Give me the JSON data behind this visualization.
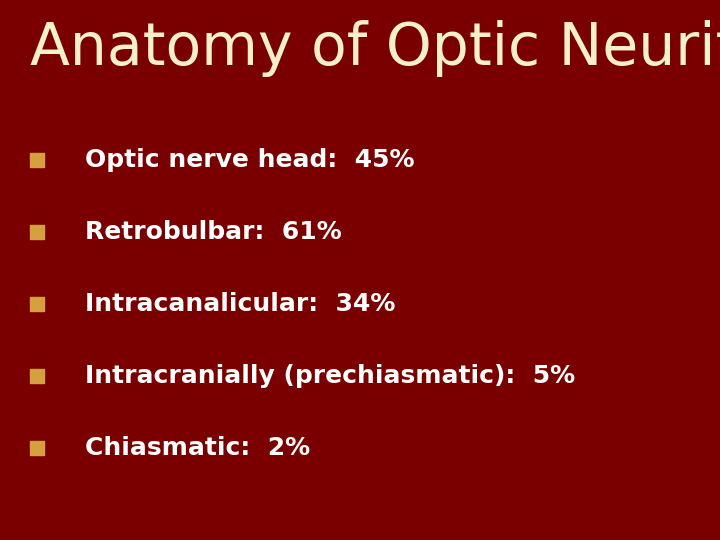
{
  "title": "Anatomy of Optic Neuritis",
  "title_color": "#F5F0C8",
  "title_fontsize": 42,
  "title_fontweight": "normal",
  "background_color": "#7A0000",
  "bullet_color": "#D4A040",
  "text_color": "#FFFFFF",
  "bullet_items": [
    "Optic nerve head:  45%",
    "Retrobulbar:  61%",
    "Intracanalicular:  34%",
    "Intracranially (prechiasmatic):  5%",
    "Chiasmatic:  2%"
  ],
  "bullet_fontsize": 18,
  "bullet_fontweight": "bold",
  "figsize": [
    7.2,
    5.4
  ],
  "dpi": 100
}
